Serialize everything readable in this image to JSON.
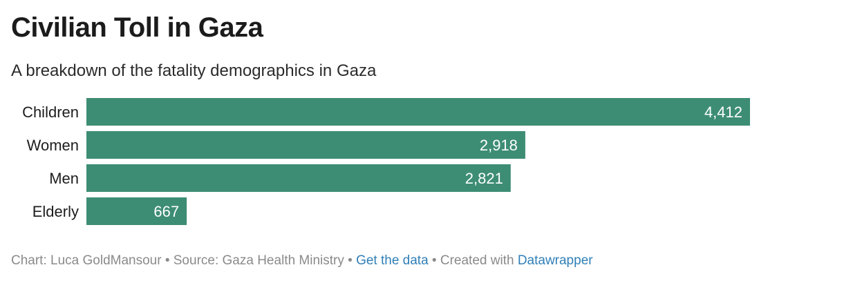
{
  "chart_data": {
    "type": "bar",
    "orientation": "horizontal",
    "title": "Civilian Toll in Gaza",
    "subtitle": "A breakdown of the fatality demographics in Gaza",
    "categories": [
      "Children",
      "Women",
      "Men",
      "Elderly"
    ],
    "values": [
      4412,
      2918,
      2821,
      667
    ],
    "value_labels": [
      "4,412",
      "2,918",
      "2,821",
      "667"
    ],
    "bar_color": "#3d8d74",
    "grid": false,
    "legend": "none"
  },
  "footer": {
    "prefix": "Chart: Luca GoldMansour • Source: Gaza Health Ministry • ",
    "get_data": "Get the data",
    "middle": " • Created with ",
    "datawrapper": "Datawrapper"
  }
}
